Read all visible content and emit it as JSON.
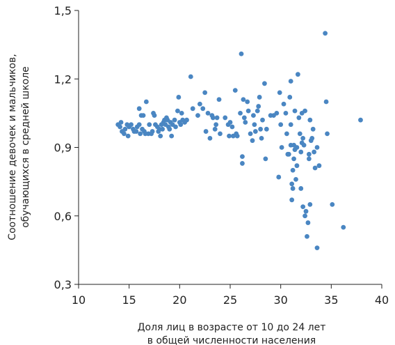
{
  "chart_data": {
    "type": "scatter",
    "title": "",
    "xlabel_lines": [
      "Доля лиц в возрасте от 10 до 24 лет",
      "в общей численности населения"
    ],
    "ylabel_lines": [
      "Соотношение девочек и мальчиков,",
      "обучающихся в средней школе"
    ],
    "xlim": [
      10,
      40
    ],
    "ylim": [
      0.3,
      1.5
    ],
    "x_ticks": [
      10,
      15,
      20,
      25,
      30,
      35,
      40
    ],
    "x_tick_labels": [
      "10",
      "15",
      "20",
      "25",
      "30",
      "35",
      "40"
    ],
    "y_ticks": [
      0.3,
      0.6,
      0.9,
      1.2,
      1.5
    ],
    "y_tick_labels": [
      "0,3",
      "0,6",
      "0,9",
      "1,2",
      "1,5"
    ],
    "grid": false,
    "color": "#4a86c2",
    "points": [
      [
        13.9,
        1.0
      ],
      [
        14.1,
        0.99
      ],
      [
        14.2,
        1.01
      ],
      [
        14.3,
        0.97
      ],
      [
        14.5,
        0.96
      ],
      [
        14.6,
        0.98
      ],
      [
        14.8,
        1.0
      ],
      [
        14.9,
        0.95
      ],
      [
        15.0,
        0.99
      ],
      [
        15.2,
        1.0
      ],
      [
        15.4,
        0.98
      ],
      [
        15.5,
        0.97
      ],
      [
        15.7,
        0.97
      ],
      [
        15.8,
        0.99
      ],
      [
        16.0,
        1.0
      ],
      [
        16.0,
        1.07
      ],
      [
        16.1,
        0.96
      ],
      [
        16.2,
        1.04
      ],
      [
        16.3,
        0.98
      ],
      [
        16.4,
        1.04
      ],
      [
        16.5,
        0.97
      ],
      [
        16.6,
        0.96
      ],
      [
        16.7,
        1.1
      ],
      [
        16.9,
        0.96
      ],
      [
        17.0,
        1.0
      ],
      [
        17.2,
        0.96
      ],
      [
        17.3,
        0.97
      ],
      [
        17.4,
        1.05
      ],
      [
        17.5,
        1.04
      ],
      [
        17.6,
        1.0
      ],
      [
        17.8,
        0.99
      ],
      [
        17.9,
        0.97
      ],
      [
        18.0,
        0.98
      ],
      [
        18.1,
        0.95
      ],
      [
        18.2,
        1.0
      ],
      [
        18.3,
        0.98
      ],
      [
        18.4,
        1.01
      ],
      [
        18.5,
        1.02
      ],
      [
        18.6,
        1.0
      ],
      [
        18.7,
        1.03
      ],
      [
        18.8,
        1.02
      ],
      [
        18.9,
        0.99
      ],
      [
        19.0,
        0.98
      ],
      [
        19.1,
        1.01
      ],
      [
        19.2,
        0.95
      ],
      [
        19.3,
        1.0
      ],
      [
        19.5,
        1.02
      ],
      [
        19.6,
        0.99
      ],
      [
        19.8,
        1.06
      ],
      [
        19.9,
        1.12
      ],
      [
        20.0,
        1.01
      ],
      [
        20.1,
        1.0
      ],
      [
        20.2,
        1.05
      ],
      [
        20.3,
        1.02
      ],
      [
        20.5,
        1.01
      ],
      [
        20.7,
        1.02
      ],
      [
        21.1,
        1.21
      ],
      [
        21.3,
        1.07
      ],
      [
        21.8,
        1.04
      ],
      [
        22.0,
        1.09
      ],
      [
        22.3,
        1.07
      ],
      [
        22.5,
        1.14
      ],
      [
        22.6,
        0.97
      ],
      [
        22.8,
        1.05
      ],
      [
        23.0,
        0.94
      ],
      [
        23.2,
        1.04
      ],
      [
        23.3,
        1.03
      ],
      [
        23.5,
        0.98
      ],
      [
        23.6,
        1.0
      ],
      [
        23.7,
        1.03
      ],
      [
        23.9,
        1.11
      ],
      [
        24.0,
        0.96
      ],
      [
        24.5,
        1.03
      ],
      [
        24.8,
        1.0
      ],
      [
        24.9,
        0.95
      ],
      [
        25.0,
        1.01
      ],
      [
        25.2,
        0.99
      ],
      [
        25.3,
        0.95
      ],
      [
        25.5,
        1.15
      ],
      [
        25.6,
        0.96
      ],
      [
        25.7,
        0.95
      ],
      [
        26.0,
        1.05
      ],
      [
        26.1,
        1.31
      ],
      [
        26.2,
        0.86
      ],
      [
        26.2,
        0.83
      ],
      [
        26.3,
        1.11
      ],
      [
        26.4,
        1.03
      ],
      [
        26.5,
        1.01
      ],
      [
        26.7,
        1.1
      ],
      [
        26.8,
        1.06
      ],
      [
        27.0,
        0.96
      ],
      [
        27.2,
        0.93
      ],
      [
        27.3,
        1.04
      ],
      [
        27.4,
        1.0
      ],
      [
        27.5,
        0.97
      ],
      [
        27.7,
        1.06
      ],
      [
        27.8,
        1.08
      ],
      [
        27.9,
        1.12
      ],
      [
        28.0,
        0.98
      ],
      [
        28.1,
        0.94
      ],
      [
        28.2,
        1.02
      ],
      [
        28.4,
        1.18
      ],
      [
        28.5,
        0.85
      ],
      [
        28.6,
        0.98
      ],
      [
        29.0,
        1.04
      ],
      [
        29.3,
        1.04
      ],
      [
        29.6,
        1.05
      ],
      [
        29.8,
        0.77
      ],
      [
        29.9,
        1.14
      ],
      [
        30.0,
        1.0
      ],
      [
        30.1,
        0.9
      ],
      [
        30.3,
        1.09
      ],
      [
        30.5,
        1.05
      ],
      [
        30.6,
        0.96
      ],
      [
        30.7,
        0.87
      ],
      [
        30.8,
        0.87
      ],
      [
        30.9,
        1.12
      ],
      [
        31.0,
        1.19
      ],
      [
        31.0,
        1.0
      ],
      [
        31.0,
        0.91
      ],
      [
        31.1,
        0.74
      ],
      [
        31.1,
        0.67
      ],
      [
        31.2,
        0.8
      ],
      [
        31.2,
        0.72
      ],
      [
        31.3,
        0.85
      ],
      [
        31.3,
        0.91
      ],
      [
        31.4,
        1.06
      ],
      [
        31.4,
        0.89
      ],
      [
        31.5,
        0.76
      ],
      [
        31.6,
        0.9
      ],
      [
        31.6,
        0.82
      ],
      [
        31.7,
        1.22
      ],
      [
        31.8,
        1.03
      ],
      [
        31.9,
        0.96
      ],
      [
        32.0,
        0.88
      ],
      [
        32.0,
        0.72
      ],
      [
        32.1,
        0.92
      ],
      [
        32.1,
        1.05
      ],
      [
        32.2,
        0.94
      ],
      [
        32.2,
        0.64
      ],
      [
        32.3,
        0.91
      ],
      [
        32.4,
        1.06
      ],
      [
        32.4,
        0.6
      ],
      [
        32.5,
        0.62
      ],
      [
        32.6,
        0.51
      ],
      [
        32.7,
        0.57
      ],
      [
        32.8,
        0.87
      ],
      [
        32.8,
        0.85
      ],
      [
        32.9,
        0.65
      ],
      [
        32.9,
        1.02
      ],
      [
        33.0,
        0.93
      ],
      [
        33.1,
        0.94
      ],
      [
        33.2,
        0.98
      ],
      [
        33.3,
        0.88
      ],
      [
        33.4,
        0.81
      ],
      [
        33.6,
        0.9
      ],
      [
        33.8,
        0.82
      ],
      [
        33.6,
        0.46
      ],
      [
        34.4,
        1.4
      ],
      [
        34.5,
        1.1
      ],
      [
        34.6,
        0.96
      ],
      [
        35.1,
        0.65
      ],
      [
        36.2,
        0.55
      ],
      [
        37.9,
        1.02
      ]
    ]
  }
}
